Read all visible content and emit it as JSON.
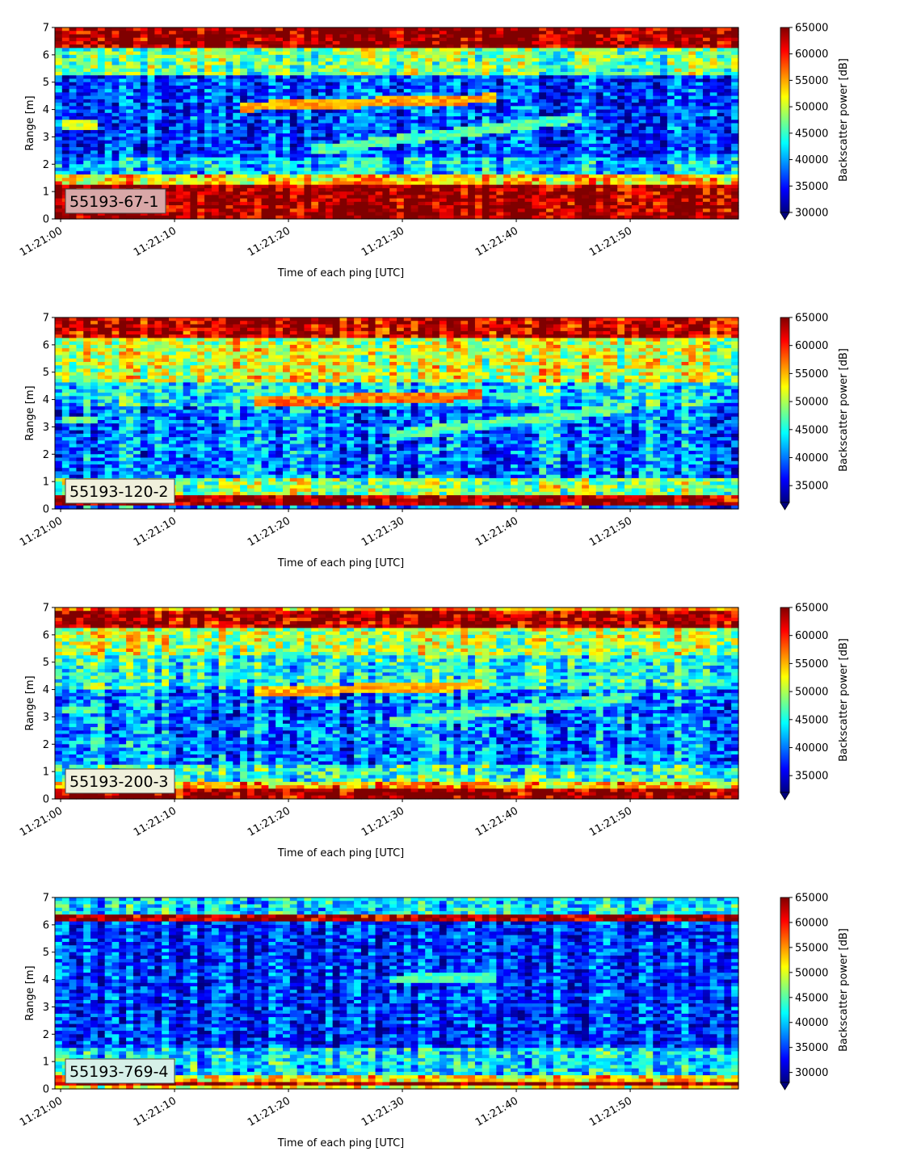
{
  "chart_data": [
    {
      "type": "heatmap",
      "label": "55193-67-1",
      "label_box_color": "#d9a7a7",
      "xlabel": "Time of each ping [UTC]",
      "ylabel": "Range [m]",
      "colorbar_label": "Backscatter power [dB]",
      "ylim": [
        0,
        7
      ],
      "xlim": [
        "11:21:00",
        "11:21:59"
      ],
      "x_ticks": [
        "11:21:00",
        "11:21:10",
        "11:21:20",
        "11:21:30",
        "11:21:40",
        "11:21:50"
      ],
      "y_ticks": [
        "0",
        "1",
        "2",
        "3",
        "4",
        "5",
        "6",
        "7"
      ],
      "clim": [
        30000,
        65000
      ],
      "colorbar_ticks": [
        "30000",
        "35000",
        "40000",
        "45000",
        "50000",
        "55000",
        "60000",
        "65000"
      ],
      "colormap": "jet",
      "colorbar_extend": "min",
      "layers": [
        {
          "range_from": 0.0,
          "range_to": 0.2,
          "power": 65000
        },
        {
          "range_from": 0.2,
          "range_to": 1.25,
          "power": 64000
        },
        {
          "range_from": 1.25,
          "range_to": 1.6,
          "power": 53000
        },
        {
          "range_from": 1.6,
          "range_to": 2.2,
          "power": 41000
        },
        {
          "range_from": 2.2,
          "range_to": 5.3,
          "power": 36500
        },
        {
          "range_from": 5.3,
          "range_to": 6.3,
          "power": 47000
        },
        {
          "range_from": 6.3,
          "range_to": 7.0,
          "power": 64500
        }
      ],
      "features": [
        {
          "time_from": "11:21:00",
          "time_to": "11:21:03",
          "range_from": 3.4,
          "range_to": 3.4,
          "power": 50000
        },
        {
          "time_from": "11:21:16",
          "time_to": "11:21:38",
          "range_from": 4.1,
          "range_to": 4.4,
          "power": 55000
        },
        {
          "time_from": "11:21:22",
          "time_to": "11:21:46",
          "range_from": 2.5,
          "range_to": 3.7,
          "power": 46000
        }
      ]
    },
    {
      "type": "heatmap",
      "label": "55193-120-2",
      "label_box_color": "#f0f0dc",
      "xlabel": "Time of each ping [UTC]",
      "ylabel": "Range [m]",
      "colorbar_label": "Backscatter power [dB]",
      "ylim": [
        0,
        7
      ],
      "xlim": [
        "11:21:00",
        "11:21:59"
      ],
      "x_ticks": [
        "11:21:00",
        "11:21:10",
        "11:21:20",
        "11:21:30",
        "11:21:40",
        "11:21:50"
      ],
      "y_ticks": [
        "0",
        "1",
        "2",
        "3",
        "4",
        "5",
        "6",
        "7"
      ],
      "clim": [
        32000,
        65000
      ],
      "colorbar_ticks": [
        "35000",
        "40000",
        "45000",
        "50000",
        "55000",
        "60000",
        "65000"
      ],
      "colormap": "jet",
      "colorbar_extend": "min",
      "layers": [
        {
          "range_from": 0.0,
          "range_to": 0.1,
          "power": 40000
        },
        {
          "range_from": 0.1,
          "range_to": 0.55,
          "power": 64500
        },
        {
          "range_from": 0.55,
          "range_to": 1.1,
          "power": 49000
        },
        {
          "range_from": 1.1,
          "range_to": 3.8,
          "power": 40000
        },
        {
          "range_from": 3.8,
          "range_to": 4.6,
          "power": 44000
        },
        {
          "range_from": 4.6,
          "range_to": 6.3,
          "power": 51000
        },
        {
          "range_from": 6.3,
          "range_to": 7.0,
          "power": 63000
        }
      ],
      "features": [
        {
          "time_from": "11:21:00",
          "time_to": "11:21:03",
          "range_from": 3.25,
          "range_to": 3.25,
          "power": 48000
        },
        {
          "time_from": "11:21:17",
          "time_to": "11:21:37",
          "range_from": 3.9,
          "range_to": 4.15,
          "power": 57000
        },
        {
          "time_from": "11:21:29",
          "time_to": "11:21:50",
          "range_from": 2.7,
          "range_to": 3.7,
          "power": 47000
        }
      ]
    },
    {
      "type": "heatmap",
      "label": "55193-200-3",
      "label_box_color": "#f0f0dc",
      "xlabel": "Time of each ping [UTC]",
      "ylabel": "Range [m]",
      "colorbar_label": "Backscatter power [dB]",
      "ylim": [
        0,
        7
      ],
      "xlim": [
        "11:21:00",
        "11:21:59"
      ],
      "x_ticks": [
        "11:21:00",
        "11:21:10",
        "11:21:20",
        "11:21:30",
        "11:21:40",
        "11:21:50"
      ],
      "y_ticks": [
        "0",
        "1",
        "2",
        "3",
        "4",
        "5",
        "6",
        "7"
      ],
      "clim": [
        32000,
        65000
      ],
      "colorbar_ticks": [
        "35000",
        "40000",
        "45000",
        "50000",
        "55000",
        "60000",
        "65000"
      ],
      "colormap": "jet",
      "colorbar_extend": "min",
      "layers": [
        {
          "range_from": 0.0,
          "range_to": 0.35,
          "power": 64500
        },
        {
          "range_from": 0.35,
          "range_to": 0.6,
          "power": 55000
        },
        {
          "range_from": 0.6,
          "range_to": 1.2,
          "power": 46000
        },
        {
          "range_from": 1.2,
          "range_to": 4.0,
          "power": 40000
        },
        {
          "range_from": 4.0,
          "range_to": 5.3,
          "power": 45000
        },
        {
          "range_from": 5.3,
          "range_to": 6.3,
          "power": 50000
        },
        {
          "range_from": 6.3,
          "range_to": 6.85,
          "power": 63500
        },
        {
          "range_from": 6.85,
          "range_to": 7.0,
          "power": 56000
        }
      ],
      "features": [
        {
          "time_from": "11:21:00",
          "time_to": "11:21:03",
          "range_from": 3.25,
          "range_to": 3.25,
          "power": 47000
        },
        {
          "time_from": "11:21:17",
          "time_to": "11:21:37",
          "range_from": 3.9,
          "range_to": 4.15,
          "power": 55000
        },
        {
          "time_from": "11:21:29",
          "time_to": "11:21:50",
          "range_from": 2.8,
          "range_to": 3.7,
          "power": 47000
        }
      ]
    },
    {
      "type": "heatmap",
      "label": "55193-769-4",
      "label_box_color": "#d6f0e8",
      "xlabel": "Time of each ping [UTC]",
      "ylabel": "Range [m]",
      "colorbar_label": "Backscatter power [dB]",
      "ylim": [
        0,
        7
      ],
      "xlim": [
        "11:21:00",
        "11:21:59"
      ],
      "x_ticks": [
        "11:21:00",
        "11:21:10",
        "11:21:20",
        "11:21:30",
        "11:21:40",
        "11:21:50"
      ],
      "y_ticks": [
        "0",
        "1",
        "2",
        "3",
        "4",
        "5",
        "6",
        "7"
      ],
      "clim": [
        28000,
        65000
      ],
      "colorbar_ticks": [
        "30000",
        "35000",
        "40000",
        "45000",
        "50000",
        "55000",
        "60000",
        "65000"
      ],
      "colormap": "jet",
      "colorbar_extend": "min",
      "layers": [
        {
          "range_from": 0.0,
          "range_to": 0.1,
          "power": 50000
        },
        {
          "range_from": 0.1,
          "range_to": 0.3,
          "power": 64500
        },
        {
          "range_from": 0.3,
          "range_to": 0.55,
          "power": 52000
        },
        {
          "range_from": 0.55,
          "range_to": 1.5,
          "power": 41000
        },
        {
          "range_from": 1.5,
          "range_to": 6.1,
          "power": 34000
        },
        {
          "range_from": 6.1,
          "range_to": 6.4,
          "power": 63000
        },
        {
          "range_from": 6.4,
          "range_to": 7.0,
          "power": 41000
        }
      ],
      "features": [
        {
          "time_from": "11:21:29",
          "time_to": "11:21:38",
          "range_from": 4.0,
          "range_to": 4.05,
          "power": 44000
        }
      ]
    }
  ]
}
